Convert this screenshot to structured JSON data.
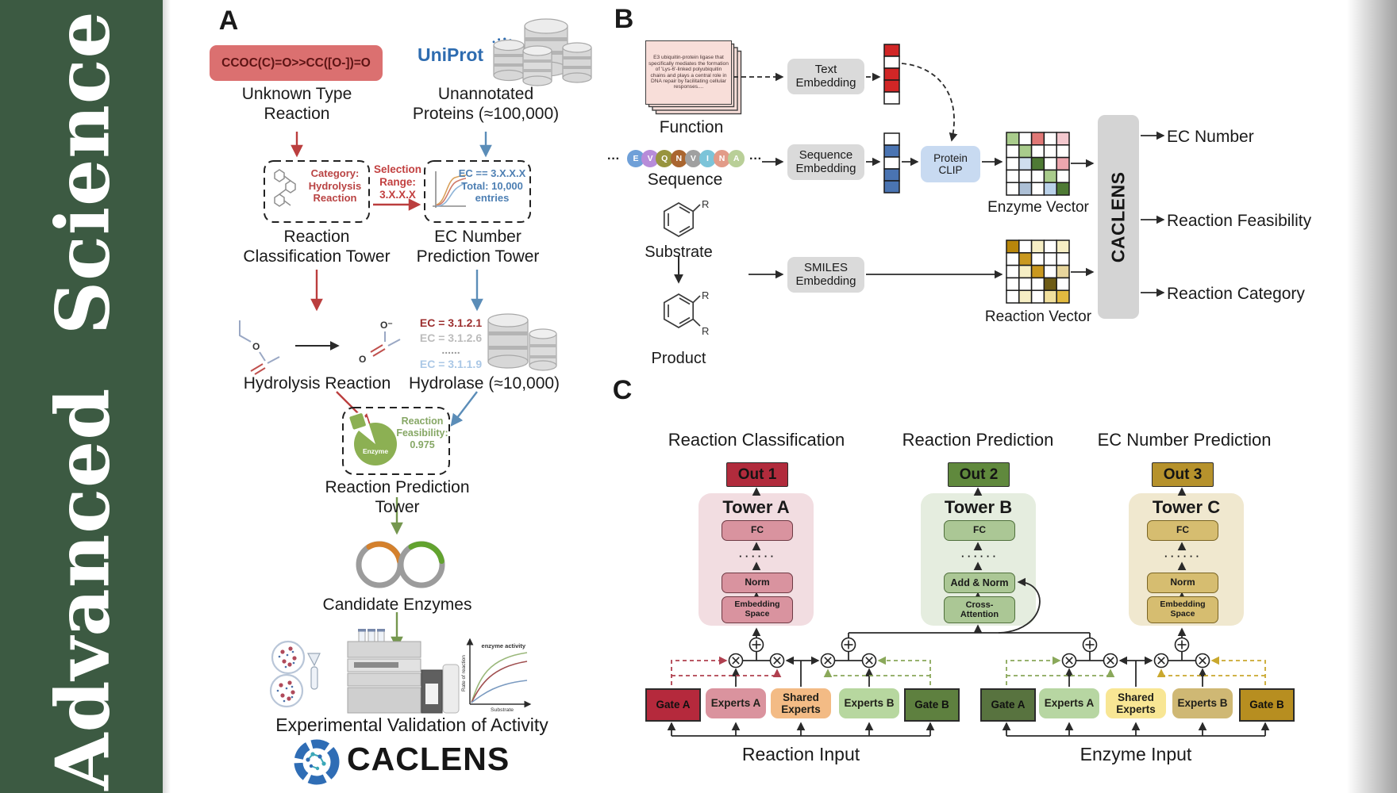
{
  "journal": {
    "name": "Advanced  Science",
    "bg": "#3c5a42"
  },
  "panel_a": {
    "label": "A",
    "smiles": "CCOC(C)=O>>CC([O-])=O",
    "unknown_reaction": [
      "Unknown Type",
      "Reaction"
    ],
    "uniprot_logo": "UniProt",
    "unannotated": [
      "Unannotated",
      "Proteins (≈100,000)"
    ],
    "selection_range": [
      "Selection",
      "Range:",
      "3.X.X.X"
    ],
    "category_box": [
      "Category:",
      "Hydrolysis",
      "Reaction"
    ],
    "ec_range_box": [
      "EC == 3.X.X.X",
      "Total: 10,000",
      "entries"
    ],
    "reaction_classification_tower": [
      "Reaction",
      "Classification Tower"
    ],
    "ec_number_prediction_tower": [
      "EC Number",
      "Prediction Tower"
    ],
    "ec_list": {
      "first": "EC = 3.1.2.1",
      "second": "EC = 3.1.2.6",
      "dots": "......",
      "last": "EC = 3.1.1.9"
    },
    "hydrolysis_reaction": "Hydrolysis Reaction",
    "hydrolase": "Hydrolase (≈10,000)",
    "enzyme_badge": "Enzyme",
    "feasibility": [
      "Reaction",
      "Feasibility:",
      "0.975"
    ],
    "reaction_prediction_tower": "Reaction Prediction Tower",
    "candidate_enzymes": "Candidate Enzymes",
    "activity_plot": {
      "ylabel": "Rate of reaction",
      "xlabel": "Substrate",
      "annotation": "enzyme activity"
    },
    "experimental_validation": "Experimental Validation of Activity",
    "wordmark": "CACLENS",
    "atoms": {
      "o": "O",
      "o_minus": "O⁻"
    }
  },
  "panel_b": {
    "label": "B",
    "function_card": "E3 ubiquitin-protein ligase that specifically mediates the formation of 'Lys-6'-linked polyubiquitin chains and plays a central role in DNA repair by facilitating cellular responses....",
    "function_label": "Function",
    "ellipsis": "···",
    "sequence": [
      {
        "t": "E",
        "c": "#6fa0d8"
      },
      {
        "t": "V",
        "c": "#b78cd9"
      },
      {
        "t": "Q",
        "c": "#98943f"
      },
      {
        "t": "N",
        "c": "#aa6630"
      },
      {
        "t": "V",
        "c": "#a0a0a0"
      },
      {
        "t": "I",
        "c": "#7cc4d9"
      },
      {
        "t": "N",
        "c": "#e29b88"
      },
      {
        "t": "A",
        "c": "#b9cf98"
      }
    ],
    "sequence_label": "Sequence",
    "substrate_label": "Substrate",
    "product_label": "Product",
    "r_group": "R",
    "text_embedding": [
      "Text",
      "Embedding"
    ],
    "sequence_embedding": [
      "Sequence",
      "Embedding"
    ],
    "smiles_embedding": [
      "SMILES",
      "Embedding"
    ],
    "protein_clip": [
      "Protein",
      "CLIP"
    ],
    "enzyme_vector_label": "Enzyme Vector",
    "reaction_vector_label": "Reaction Vector",
    "caclens_module": "CACLENS",
    "outputs": [
      "EC Number",
      "Reaction Feasibility",
      "Reaction Category"
    ],
    "text_vector": [
      "#d12626",
      "#ffffff",
      "#d12626",
      "#d12626",
      "#ffffff"
    ],
    "sequence_vector": [
      "#ffffff",
      "#4a74b2",
      "#ffffff",
      "#4a74b2",
      "#4a74b2"
    ],
    "enzyme_vector": [
      [
        "#a9cc8c",
        "#ffffff",
        "#e07876",
        "#ffffff",
        "#f3c8ce"
      ],
      [
        "#ffffff",
        "#a9cc8c",
        "#ffffff",
        "#ffffff",
        "#ffffff"
      ],
      [
        "#ffffff",
        "#cfdeee",
        "#4e7a34",
        "#ffffff",
        "#eda6ae"
      ],
      [
        "#ffffff",
        "#ffffff",
        "#ffffff",
        "#a9cc8c",
        "#ffffff"
      ],
      [
        "#ffffff",
        "#adc0d6",
        "#ffffff",
        "#bad2ea",
        "#4e7a34"
      ]
    ],
    "reaction_vector": [
      [
        "#b8860b",
        "#ffffff",
        "#f6eec4",
        "#ffffff",
        "#f6eec4"
      ],
      [
        "#ffffff",
        "#c9981f",
        "#ffffff",
        "#ffffff",
        "#ffffff"
      ],
      [
        "#ffffff",
        "#f6eec4",
        "#c9981f",
        "#ffffff",
        "#e7d59c"
      ],
      [
        "#ffffff",
        "#ffffff",
        "#ffffff",
        "#6e5c16",
        "#ffffff"
      ],
      [
        "#ffffff",
        "#f6eec4",
        "#ffffff",
        "#f1e09e",
        "#e2ba40"
      ]
    ]
  },
  "panel_c": {
    "label": "C",
    "titles": [
      "Reaction Classification",
      "Reaction Prediction",
      "EC Number Prediction"
    ],
    "outs": [
      "Out 1",
      "Out 2",
      "Out 3"
    ],
    "tower_titles": [
      "Tower A",
      "Tower B",
      "Tower C"
    ],
    "fc": "FC",
    "dots": "· · · · · ·",
    "norm": "Norm",
    "embedding_space": [
      "Embedding",
      "Space"
    ],
    "add_norm": "Add & Norm",
    "cross_attention": [
      "Cross-",
      "Attention"
    ],
    "gate_a": "Gate A",
    "experts_a": "Experts A",
    "shared_experts": [
      "Shared",
      "Experts"
    ],
    "experts_b": "Experts B",
    "gate_b": "Gate B",
    "reaction_input": "Reaction Input",
    "enzyme_input": "Enzyme Input"
  },
  "colors": {
    "sidebar_green": "#3c5a42",
    "smiles_box": "#db7070",
    "red_arrow": "#bb3e3e",
    "blue_arrow": "#5b8db8",
    "green_arrow": "#75974f",
    "uniprot_blue": "#2e6cb0",
    "enzyme_green": "#8cb053",
    "plasmid_orange": "#d4802c",
    "plasmid_green": "#62a32f",
    "gray_module": "#dadada",
    "protein_clip_blue": "#c8daf1",
    "caclens_module_gray": "#d4d4d4",
    "out1": "#b12b3c",
    "out2": "#60893d",
    "out3": "#b6922c",
    "tower_a_bg": "#f2dde1",
    "tower_b_bg": "#e5eddf",
    "tower_c_bg": "#f0e8cf",
    "gate_a_reaction": "#b5293c",
    "experts_a_reaction": "#da939e",
    "shared_experts_reaction": "#f3bb85",
    "experts_b_reaction": "#b7d79f",
    "gate_b_reaction": "#5e803f",
    "gate_a_enzyme": "#58733f",
    "experts_a_enzyme": "#b7d6a2",
    "shared_experts_enzyme": "#f8e694",
    "experts_b_enzyme": "#cfb874",
    "gate_b_enzyme": "#b78e20",
    "dashed_crimson": "#b0404f",
    "dashed_green": "#8aa85a",
    "dashed_yellow": "#c9a82e"
  }
}
